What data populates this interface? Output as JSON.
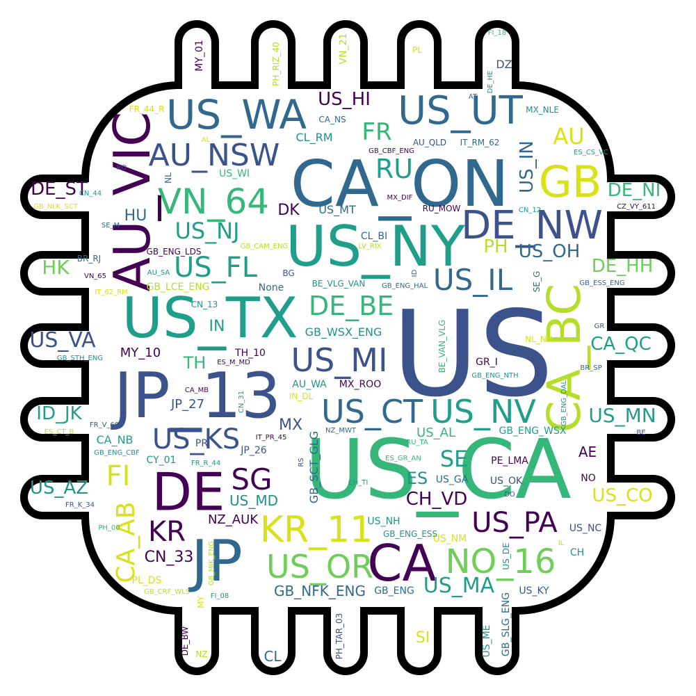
{
  "palette": {
    "c1": "#440154",
    "c2": "#3b528b",
    "c3": "#31688e",
    "c4": "#21918c",
    "c5": "#1f9e89",
    "c6": "#35b779",
    "c7": "#6ece58",
    "c8": "#b5de2b",
    "c9": "#d8e219"
  },
  "words": [
    {
      "t": "US",
      "w": 100,
      "c": "c2"
    },
    {
      "t": "US_CA",
      "w": 95,
      "c": "c6"
    },
    {
      "t": "CA_ON",
      "w": 88,
      "c": "c3"
    },
    {
      "t": "US_TX",
      "w": 85,
      "c": "c5"
    },
    {
      "t": "JP_13",
      "w": 84,
      "c": "c2"
    },
    {
      "t": "US_NY",
      "w": 78,
      "c": "c5"
    },
    {
      "t": "AU_VIC",
      "w": 70,
      "c": "c1"
    },
    {
      "t": "DE",
      "w": 68,
      "c": "c1"
    },
    {
      "t": "JP",
      "w": 68,
      "c": "c3"
    },
    {
      "t": "CA",
      "w": 64,
      "c": "c1"
    },
    {
      "t": "GB",
      "w": 62,
      "c": "c9"
    },
    {
      "t": "CA_BC",
      "w": 60,
      "c": "c8"
    },
    {
      "t": "US_WA",
      "w": 58,
      "c": "c3"
    },
    {
      "t": "US_UT",
      "w": 58,
      "c": "c3"
    },
    {
      "t": "DE_NW",
      "w": 56,
      "c": "c2"
    },
    {
      "t": "VN_64",
      "w": 50,
      "c": "c6"
    },
    {
      "t": "KR_11",
      "w": 50,
      "c": "c9"
    },
    {
      "t": "NO_16",
      "w": 48,
      "c": "c7"
    },
    {
      "t": "US_OR",
      "w": 46,
      "c": "c7"
    },
    {
      "t": "US_MI",
      "w": 46,
      "c": "c2"
    },
    {
      "t": "US_CT",
      "w": 46,
      "c": "c3"
    },
    {
      "t": "US_NV",
      "w": 46,
      "c": "c5"
    },
    {
      "t": "AU_NSW",
      "w": 44,
      "c": "c2"
    },
    {
      "t": "US_IL",
      "w": 42,
      "c": "c3"
    },
    {
      "t": "SG",
      "w": 42,
      "c": "c1"
    },
    {
      "t": "US_PA",
      "w": 40,
      "c": "c1"
    },
    {
      "t": "KR",
      "w": 40,
      "c": "c1"
    },
    {
      "t": "FI",
      "w": 40,
      "c": "c9"
    },
    {
      "t": "US_FL",
      "w": 38,
      "c": "c5"
    },
    {
      "t": "CA_AB",
      "w": 36,
      "c": "c9"
    },
    {
      "t": "US_KS",
      "w": 38,
      "c": "c2"
    },
    {
      "t": "DE_BE",
      "w": 36,
      "c": "c6"
    },
    {
      "t": "US_MA",
      "w": 34,
      "c": "c5"
    },
    {
      "t": "RU",
      "w": 36,
      "c": "c5"
    },
    {
      "t": "FR",
      "w": 34,
      "c": "c6"
    },
    {
      "t": "US_NJ",
      "w": 32,
      "c": "c5"
    },
    {
      "t": "AU",
      "w": 32,
      "c": "c9"
    },
    {
      "t": "US_VA",
      "w": 30,
      "c": "c2"
    },
    {
      "t": "SE",
      "w": 30,
      "c": "c5"
    },
    {
      "t": "US_HI",
      "w": 28,
      "c": "c1"
    },
    {
      "t": "US_MN",
      "w": 28,
      "c": "c5"
    },
    {
      "t": "CH_VD",
      "w": 26,
      "c": "c1"
    },
    {
      "t": "US_AZ",
      "w": 26,
      "c": "c4"
    },
    {
      "t": "US_CO",
      "w": 26,
      "c": "c9"
    },
    {
      "t": "CA_QC",
      "w": 26,
      "c": "c5"
    },
    {
      "t": "DE_HH",
      "w": 26,
      "c": "c7"
    },
    {
      "t": "DE_NI",
      "w": 26,
      "c": "c6"
    },
    {
      "t": "DE_ST",
      "w": 26,
      "c": "c1"
    },
    {
      "t": "ID_JK",
      "w": 26,
      "c": "c5"
    },
    {
      "t": "US_OH",
      "w": 24,
      "c": "c3"
    },
    {
      "t": "US_IN",
      "w": 24,
      "c": "c3"
    },
    {
      "t": "HK",
      "w": 26,
      "c": "c7"
    },
    {
      "t": "GB_NFK_ENG",
      "w": 22,
      "c": "c3"
    },
    {
      "t": "CN_33",
      "w": 22,
      "c": "c1"
    },
    {
      "t": "US_MD",
      "w": 22,
      "c": "c4"
    },
    {
      "t": "NZ_AUK",
      "w": 20,
      "c": "c1"
    },
    {
      "t": "PH",
      "w": 26,
      "c": "c8"
    },
    {
      "t": "ES",
      "w": 24,
      "c": "c4"
    },
    {
      "t": "MX",
      "w": 22,
      "c": "c2"
    },
    {
      "t": "TH",
      "w": 24,
      "c": "c6"
    },
    {
      "t": "IN",
      "w": 22,
      "c": "c5"
    },
    {
      "t": "HU",
      "w": 22,
      "c": "c3"
    },
    {
      "t": "DK",
      "w": 22,
      "c": "c1"
    },
    {
      "t": "AE",
      "w": 20,
      "c": "c1"
    },
    {
      "t": "SI",
      "w": 22,
      "c": "c9"
    },
    {
      "t": "CL",
      "w": 20,
      "c": "c3"
    },
    {
      "t": "MY_10",
      "w": 18,
      "c": "c1"
    },
    {
      "t": "JP_27",
      "w": 18,
      "c": "c2"
    },
    {
      "t": "US_NM",
      "w": 14,
      "c": "c9"
    },
    {
      "t": "US_NH",
      "w": 14,
      "c": "c4"
    },
    {
      "t": "US_AL",
      "w": 18,
      "c": "c6"
    },
    {
      "t": "US_OK",
      "w": 14,
      "c": "c2"
    },
    {
      "t": "US_GA",
      "w": 14,
      "c": "c3"
    },
    {
      "t": "US_MT",
      "w": 16,
      "c": "c3"
    },
    {
      "t": "US_KY",
      "w": 14,
      "c": "c2"
    },
    {
      "t": "US_ME",
      "w": 14,
      "c": "c4"
    },
    {
      "t": "US_NC",
      "w": 14,
      "c": "c2"
    },
    {
      "t": "US_WI",
      "w": 14,
      "c": "c6"
    },
    {
      "t": "US_DE",
      "w": 12,
      "c": "c4"
    },
    {
      "t": "GB_WSX_ENG",
      "w": 16,
      "c": "c4"
    },
    {
      "t": "GB_ENG",
      "w": 14,
      "c": "c3"
    },
    {
      "t": "GB_SCT_GLG",
      "w": 16,
      "c": "c3"
    },
    {
      "t": "GB_SLG_ENG",
      "w": 14,
      "c": "c3"
    },
    {
      "t": "GB_ENG_WSX",
      "w": 14,
      "c": "c5"
    },
    {
      "t": "GB_ENG_ESS",
      "w": 12,
      "c": "c4"
    },
    {
      "t": "GB_ENG_NTH",
      "w": 10,
      "c": "c4"
    },
    {
      "t": "GB_ENG_DAL",
      "w": 10,
      "c": "c4"
    },
    {
      "t": "GB_ENG_HAL",
      "w": 10,
      "c": "c3"
    },
    {
      "t": "GB_ENG_LDS",
      "w": 12,
      "c": "c1"
    },
    {
      "t": "GB_ENG_CBF",
      "w": 10,
      "c": "c4"
    },
    {
      "t": "GB_ESS_ENG",
      "w": 10,
      "c": "c3"
    },
    {
      "t": "GB_CBF_ENG",
      "w": 10,
      "c": "c1"
    },
    {
      "t": "GB_CAM_ENG",
      "w": 10,
      "c": "c8"
    },
    {
      "t": "GB_LCE_ENG",
      "w": 14,
      "c": "c8"
    },
    {
      "t": "GB_NLK_SCT",
      "w": 10,
      "c": "c9"
    },
    {
      "t": "GB_STH_ENG",
      "w": 10,
      "c": "c4"
    },
    {
      "t": "GB_CRF_WLS",
      "w": 10,
      "c": "c8"
    },
    {
      "t": "GB_MIK_ENG",
      "w": 10,
      "c": "c8"
    },
    {
      "t": "BE_VLG_VAN",
      "w": 12,
      "c": "c4"
    },
    {
      "t": "BE_VAN_VLG",
      "w": 12,
      "c": "c6"
    },
    {
      "t": "CA_NS",
      "w": 12,
      "c": "c3"
    },
    {
      "t": "CA_NB",
      "w": 16,
      "c": "c5"
    },
    {
      "t": "CA_MB",
      "w": 10,
      "c": "c1"
    },
    {
      "t": "CL_RM",
      "w": 16,
      "c": "c4"
    },
    {
      "t": "CL_BI",
      "w": 14,
      "c": "c3"
    },
    {
      "t": "AU_QLD",
      "w": 12,
      "c": "c2"
    },
    {
      "t": "AU_WA",
      "w": 14,
      "c": "c4"
    },
    {
      "t": "AU_SA",
      "w": 10,
      "c": "c4"
    },
    {
      "t": "IT_RM_62",
      "w": 12,
      "c": "c3"
    },
    {
      "t": "IT_62_RM",
      "w": 10,
      "c": "c9"
    },
    {
      "t": "IT_PR_45",
      "w": 10,
      "c": "c1"
    },
    {
      "t": "MX_NLE",
      "w": 12,
      "c": "c4"
    },
    {
      "t": "MX_DIF",
      "w": 10,
      "c": "c1"
    },
    {
      "t": "MX_ROO",
      "w": 14,
      "c": "c1"
    },
    {
      "t": "ES_CS_VC",
      "w": 10,
      "c": "c5"
    },
    {
      "t": "ES_M_MD",
      "w": 10,
      "c": "c1"
    },
    {
      "t": "ES_GR_AN",
      "w": 10,
      "c": "c6"
    },
    {
      "t": "ES_CT_B",
      "w": 10,
      "c": "c8"
    },
    {
      "t": "RU_MOW",
      "w": 12,
      "c": "c1"
    },
    {
      "t": "RU_TA",
      "w": 10,
      "c": "c6"
    },
    {
      "t": "CN_44",
      "w": 10,
      "c": "c4"
    },
    {
      "t": "CN_12",
      "w": 10,
      "c": "c4"
    },
    {
      "t": "CN_13",
      "w": 12,
      "c": "c4"
    },
    {
      "t": "CN_31",
      "w": 10,
      "c": "c4"
    },
    {
      "t": "SE_M",
      "w": 10,
      "c": "c3"
    },
    {
      "t": "SE_G",
      "w": 12,
      "c": "c3"
    },
    {
      "t": "LV_RIX",
      "w": 10,
      "c": "c8"
    },
    {
      "t": "BR_RJ",
      "w": 12,
      "c": "c3"
    },
    {
      "t": "BR_SP",
      "w": 10,
      "c": "c3"
    },
    {
      "t": "VN_65",
      "w": 10,
      "c": "c1"
    },
    {
      "t": "VN_21",
      "w": 14,
      "c": "c8"
    },
    {
      "t": "TH_10",
      "w": 14,
      "c": "c1"
    },
    {
      "t": "NL_NH",
      "w": 12,
      "c": "c9"
    },
    {
      "t": "GR_I",
      "w": 14,
      "c": "c1"
    },
    {
      "t": "IN_DL",
      "w": 12,
      "c": "c9"
    },
    {
      "t": "NZ_MWT",
      "w": 10,
      "c": "c3"
    },
    {
      "t": "CY_01",
      "w": 14,
      "c": "c4"
    },
    {
      "t": "FR_R_44",
      "w": 10,
      "c": "c4"
    },
    {
      "t": "FR_44_R",
      "w": 12,
      "c": "c9"
    },
    {
      "t": "FR_V_69",
      "w": 10,
      "c": "c2"
    },
    {
      "t": "FR_K_34",
      "w": 10,
      "c": "c2"
    },
    {
      "t": "FI_18",
      "w": 10,
      "c": "c6"
    },
    {
      "t": "FI_08",
      "w": 10,
      "c": "c4"
    },
    {
      "t": "CH_TI",
      "w": 10,
      "c": "c4"
    },
    {
      "t": "PE_LMA",
      "w": 14,
      "c": "c1"
    },
    {
      "t": "JP_26",
      "w": 14,
      "c": "c2"
    },
    {
      "t": "PH_00",
      "w": 10,
      "c": "c6"
    },
    {
      "t": "PH_RIZ_40",
      "w": 12,
      "c": "c8"
    },
    {
      "t": "PH_TAR_03",
      "w": 12,
      "c": "c2"
    },
    {
      "t": "PL_DS",
      "w": 14,
      "c": "c9"
    },
    {
      "t": "CZ_VY_611",
      "w": 10,
      "c": "c1"
    },
    {
      "t": "DE_BW",
      "w": 12,
      "c": "c1"
    },
    {
      "t": "DE_HE",
      "w": 10,
      "c": "c4"
    },
    {
      "t": "MY_01",
      "w": 14,
      "c": "c1"
    },
    {
      "t": "DZ",
      "w": 16,
      "c": "c2"
    },
    {
      "t": "NO",
      "w": 14,
      "c": "c1"
    },
    {
      "t": "CH",
      "w": 14,
      "c": "c4"
    },
    {
      "t": "PR",
      "w": 14,
      "c": "c2"
    },
    {
      "t": "BG",
      "w": 12,
      "c": "c2"
    },
    {
      "t": "AT",
      "w": 10,
      "c": "c3"
    },
    {
      "t": "AL",
      "w": 10,
      "c": "c9"
    },
    {
      "t": "RO",
      "w": 10,
      "c": "c2"
    },
    {
      "t": "NL",
      "w": 12,
      "c": "c3"
    },
    {
      "t": "PL",
      "w": 12,
      "c": "c9"
    },
    {
      "t": "NZ",
      "w": 12,
      "c": "c8"
    },
    {
      "t": "MY",
      "w": 12,
      "c": "c9"
    },
    {
      "t": "BE",
      "w": 10,
      "c": "c2"
    },
    {
      "t": "GR",
      "w": 10,
      "c": "c2"
    },
    {
      "t": "DO",
      "w": 10,
      "c": "c2"
    },
    {
      "t": "IL",
      "w": 10,
      "c": "c8"
    },
    {
      "t": "ID",
      "w": 10,
      "c": "c2"
    },
    {
      "t": "RS",
      "w": 10,
      "c": "c2"
    },
    {
      "t": "None",
      "w": 14,
      "c": "c3"
    }
  ]
}
